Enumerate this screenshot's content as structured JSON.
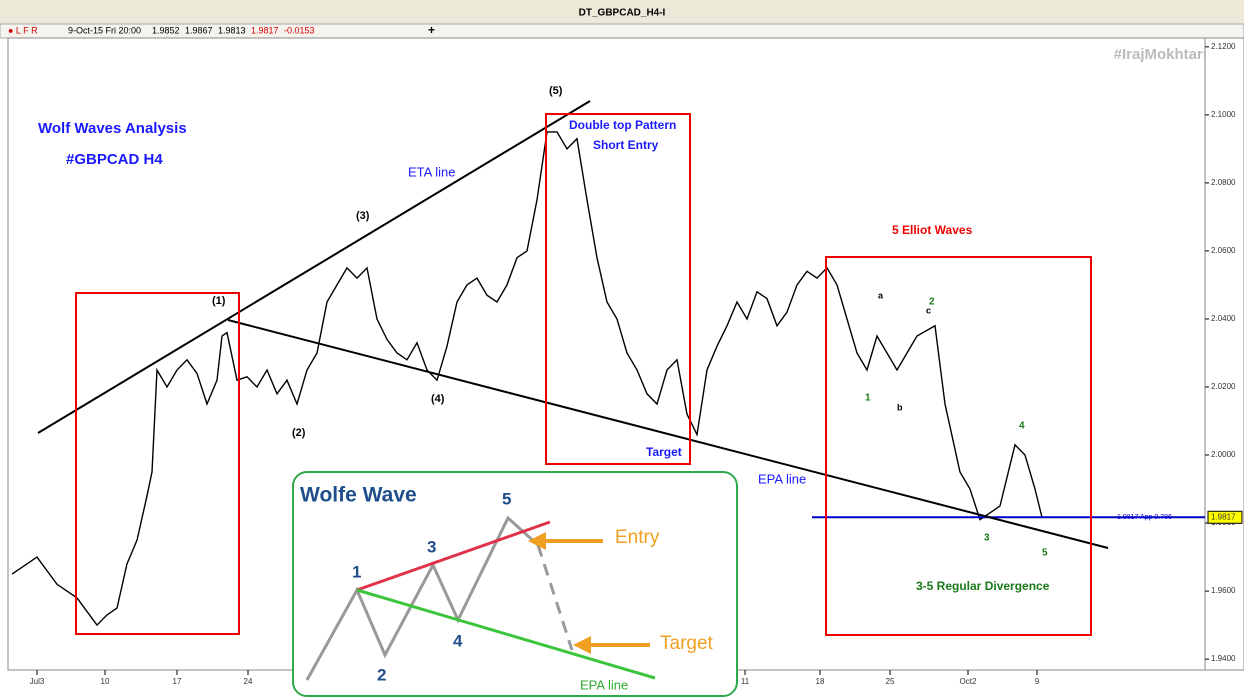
{
  "chart_data": {
    "type": "line",
    "title": "DT_GBPCAD_H4-I",
    "info_bar": [
      "9-Oct-15 Fri 20:00",
      "1.9852",
      "1.9867",
      "1.9813",
      "1.9817",
      "-0.0153"
    ],
    "watermark": "#IrajMokhtari",
    "color": "#000000",
    "x": [
      -2.5,
      0,
      2,
      4,
      6,
      7,
      8,
      9,
      10,
      11,
      11.5,
      12,
      13,
      14,
      15,
      16,
      17,
      18,
      18.5,
      19,
      20,
      21,
      22,
      23,
      24,
      25,
      26,
      27,
      28,
      29,
      30,
      31,
      32,
      33,
      34,
      35,
      36,
      37,
      38,
      39,
      40,
      41,
      42,
      43,
      44,
      45,
      46,
      47,
      48,
      49,
      50,
      51,
      52,
      53,
      54,
      55,
      56,
      57,
      58,
      59,
      60,
      61,
      62,
      63,
      64,
      65,
      66,
      67,
      68,
      69,
      70,
      71,
      72,
      73,
      74,
      75,
      76,
      77,
      78,
      79,
      80,
      81,
      82,
      83,
      84,
      85,
      86,
      87,
      88,
      89.8,
      90.8,
      92.3,
      93.3,
      94.3,
      96.3,
      97.8,
      98.8,
      99.8,
      100.5
    ],
    "values": [
      1.965,
      1.97,
      1.962,
      1.958,
      1.95,
      1.953,
      1.955,
      1.968,
      1.975,
      1.988,
      1.995,
      2.025,
      2.02,
      2.025,
      2.028,
      2.024,
      2.015,
      2.022,
      2.035,
      2.036,
      2.022,
      2.023,
      2.02,
      2.025,
      2.018,
      2.022,
      2.015,
      2.025,
      2.03,
      2.045,
      2.05,
      2.055,
      2.052,
      2.055,
      2.04,
      2.034,
      2.03,
      2.028,
      2.033,
      2.025,
      2.022,
      2.032,
      2.045,
      2.05,
      2.052,
      2.047,
      2.045,
      2.05,
      2.058,
      2.06,
      2.075,
      2.095,
      2.095,
      2.09,
      2.093,
      2.075,
      2.058,
      2.045,
      2.04,
      2.03,
      2.025,
      2.018,
      2.015,
      2.025,
      2.028,
      2.012,
      2.006,
      2.025,
      2.032,
      2.038,
      2.045,
      2.04,
      2.048,
      2.046,
      2.038,
      2.042,
      2.05,
      2.054,
      2.052,
      2.055,
      2.05,
      2.04,
      2.03,
      2.025,
      2.035,
      2.03,
      2.025,
      2.03,
      2.035,
      2.038,
      2.015,
      1.995,
      1.99,
      1.981,
      1.985,
      2.003,
      2.0,
      1.99,
      1.9817
    ],
    "xlim": [
      -2.9,
      116.8
    ],
    "xticks": [
      {
        "value": 0,
        "label": "Jul3"
      },
      {
        "value": 6.8,
        "label": "10"
      },
      {
        "value": 14,
        "label": "17"
      },
      {
        "value": 21.1,
        "label": "24"
      },
      {
        "value": 70.8,
        "label": "11"
      },
      {
        "value": 78.3,
        "label": "18"
      },
      {
        "value": 85.3,
        "label": "25"
      },
      {
        "value": 93.1,
        "label": "Oct2"
      },
      {
        "value": 100,
        "label": "9"
      }
    ],
    "ylim": [
      1.9368,
      2.1226
    ],
    "yticks": [
      {
        "value": 1.94,
        "label": "1.9400"
      },
      {
        "value": 1.96,
        "label": "1.9600"
      },
      {
        "value": 1.98,
        "label": "1.9800"
      },
      {
        "value": 2.0,
        "label": "2.0000"
      },
      {
        "value": 2.02,
        "label": "2.0200"
      },
      {
        "value": 2.04,
        "label": "2.0400"
      },
      {
        "value": 2.06,
        "label": "2.0600"
      },
      {
        "value": 2.08,
        "label": "2.0800"
      },
      {
        "value": 2.1,
        "label": "2.1000"
      },
      {
        "value": 2.12,
        "label": "2.1200"
      }
    ],
    "current_price": 1.9817,
    "level_label": "1.9817 App 0.786",
    "annotations": {
      "analysis_title": "Wolf Waves Analysis",
      "pair": "#GBPCAD H4",
      "eta_line": "ETA line",
      "epa_line": "EPA line",
      "w1": "(1)",
      "w2": "(2)",
      "w3": "(3)",
      "w4": "(4)",
      "w5": "(5)",
      "double_top": "Double top Pattern",
      "short_entry": "Short Entry",
      "target": "Target",
      "elliot": "5 Elliot Waves",
      "e1": "1",
      "e2": "2",
      "e3": "3",
      "e4": "4",
      "e5": "5",
      "ea": "a",
      "eb": "b",
      "ec": "c",
      "divergence": "3-5 Regular Divergence"
    },
    "inset": {
      "title": "Wolfe Wave",
      "entry": "Entry",
      "target": "Target",
      "epa_line": "EPA line",
      "labels": [
        "1",
        "2",
        "3",
        "4",
        "5"
      ]
    }
  }
}
